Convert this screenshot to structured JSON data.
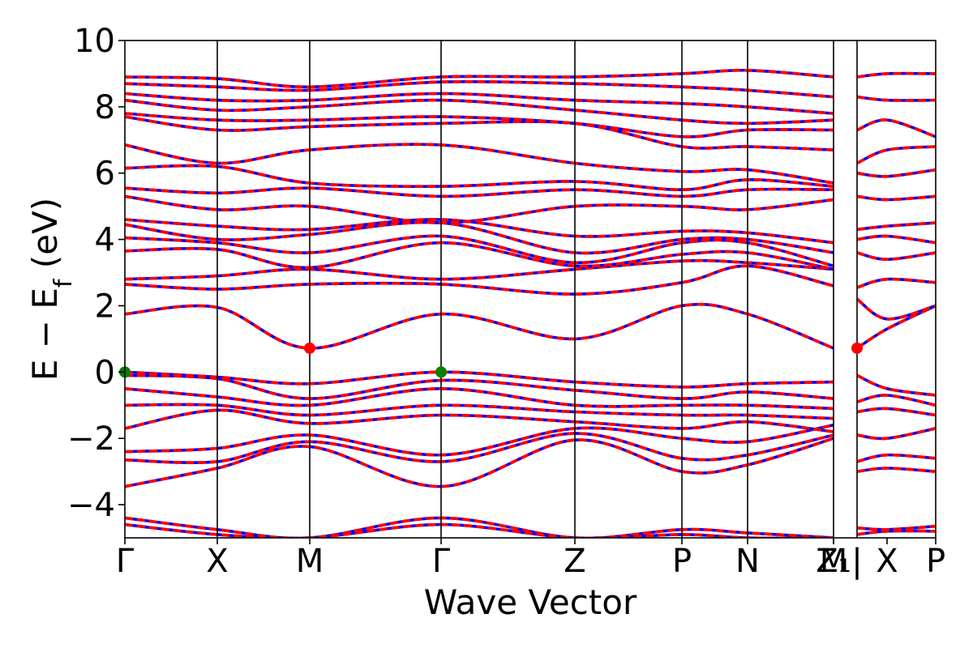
{
  "chart_data": {
    "type": "line",
    "title": "",
    "xlabel": "Wave Vector",
    "ylabel": {
      "main": "E − E",
      "subscript": "f",
      "unit": " (eV)"
    },
    "ylim": [
      -5,
      10
    ],
    "yticks": [
      -4,
      -2,
      0,
      2,
      4,
      6,
      8,
      10
    ],
    "grid": false,
    "kpath": [
      "Γ",
      "X",
      "M",
      "Γ",
      "Z",
      "P",
      "N",
      "Z1|M",
      "X",
      "P"
    ],
    "high_symmetry_labels": [
      {
        "label": "Γ",
        "x": 0.0
      },
      {
        "label": "X",
        "x": 0.114
      },
      {
        "label": "M",
        "x": 0.228
      },
      {
        "label": "Γ",
        "x": 0.39
      },
      {
        "label": "Z",
        "x": 0.555
      },
      {
        "label": "P",
        "x": 0.687
      },
      {
        "label": "N",
        "x": 0.768
      },
      {
        "label": "Z₁",
        "x": 0.874
      },
      {
        "label": "M",
        "x": 0.874
      },
      {
        "label": "|",
        "x": 0.903
      },
      {
        "label": "X",
        "x": 0.94
      },
      {
        "label": "P",
        "x": 1.0
      }
    ],
    "segment_boundaries": [
      0.114,
      0.228,
      0.39,
      0.555,
      0.687,
      0.768,
      0.874,
      0.903
    ],
    "colors": {
      "line_red": "#ff0000",
      "line_blue": "#0000ff",
      "cbm_marker": "#ff0000",
      "vbm_marker": "#008000"
    },
    "markers": [
      {
        "name": "VBM",
        "x": 0.0,
        "y": 0.0,
        "color": "#008000"
      },
      {
        "name": "VBM",
        "x": 0.39,
        "y": 0.0,
        "color": "#008000"
      },
      {
        "name": "CBM",
        "x": 0.228,
        "y": 0.72,
        "color": "#ff0000"
      },
      {
        "name": "CBM",
        "x": 0.903,
        "y": 0.72,
        "color": "#ff0000"
      }
    ],
    "bands": [
      {
        "x": [
          0,
          0.114,
          0.228,
          0.39,
          0.555,
          0.687,
          0.768,
          0.874
        ],
        "y": [
          -4.4,
          -4.75,
          -5.0,
          -4.4,
          -5.0,
          -4.75,
          -4.85,
          -5.0
        ]
      },
      {
        "x": [
          0,
          0.114,
          0.228,
          0.39,
          0.555,
          0.687,
          0.768,
          0.874
        ],
        "y": [
          -4.6,
          -4.9,
          -5.0,
          -4.6,
          -5.0,
          -4.9,
          -5.0,
          -5.0
        ]
      },
      {
        "x": [
          0,
          0.114,
          0.228,
          0.39,
          0.555,
          0.687,
          0.768,
          0.874
        ],
        "y": [
          -3.45,
          -2.9,
          -2.25,
          -3.45,
          -2.05,
          -3.0,
          -2.8,
          -2.0
        ]
      },
      {
        "x": [
          0,
          0.114,
          0.228,
          0.39,
          0.555,
          0.687,
          0.768,
          0.874
        ],
        "y": [
          -2.65,
          -2.7,
          -2.1,
          -2.7,
          -1.85,
          -2.6,
          -2.5,
          -1.9
        ]
      },
      {
        "x": [
          0,
          0.114,
          0.228,
          0.39,
          0.555,
          0.687,
          0.768,
          0.874
        ],
        "y": [
          -2.4,
          -2.3,
          -1.9,
          -2.5,
          -1.7,
          -2.0,
          -2.1,
          -1.6
        ]
      },
      {
        "x": [
          0,
          0.114,
          0.228,
          0.39,
          0.555,
          0.687,
          0.768,
          0.874
        ],
        "y": [
          -1.7,
          -1.15,
          -1.55,
          -1.3,
          -1.5,
          -1.7,
          -1.5,
          -1.8
        ]
      },
      {
        "x": [
          0,
          0.114,
          0.228,
          0.39,
          0.555,
          0.687,
          0.768,
          0.874
        ],
        "y": [
          -1.0,
          -1.0,
          -1.3,
          -1.0,
          -1.2,
          -1.3,
          -1.3,
          -1.4
        ]
      },
      {
        "x": [
          0,
          0.114,
          0.228,
          0.39,
          0.555,
          0.687,
          0.768,
          0.874
        ],
        "y": [
          -0.5,
          -0.75,
          -1.0,
          -0.5,
          -1.0,
          -1.0,
          -1.0,
          -1.1
        ]
      },
      {
        "x": [
          0,
          0.114,
          0.228,
          0.39,
          0.555,
          0.687,
          0.768,
          0.874
        ],
        "y": [
          -0.1,
          -0.2,
          -0.8,
          -0.25,
          -0.55,
          -0.8,
          -0.6,
          -0.8
        ]
      },
      {
        "x": [
          0,
          0.114,
          0.228,
          0.39,
          0.555,
          0.687,
          0.768,
          0.874
        ],
        "y": [
          0.0,
          -0.15,
          -0.35,
          0.0,
          -0.3,
          -0.45,
          -0.35,
          -0.3
        ]
      },
      {
        "x": [
          0,
          0.114,
          0.228,
          0.39,
          0.555,
          0.687,
          0.768,
          0.874
        ],
        "y": [
          1.75,
          1.95,
          0.72,
          1.75,
          1.0,
          2.0,
          1.75,
          0.72
        ]
      },
      {
        "x": [
          0,
          0.114,
          0.228,
          0.39,
          0.555,
          0.687,
          0.768,
          0.874
        ],
        "y": [
          2.65,
          2.5,
          2.65,
          2.65,
          2.35,
          2.7,
          3.2,
          2.6
        ]
      },
      {
        "x": [
          0,
          0.114,
          0.228,
          0.39,
          0.555,
          0.687,
          0.768,
          0.874
        ],
        "y": [
          2.8,
          2.9,
          3.1,
          2.8,
          3.1,
          3.35,
          3.3,
          3.1
        ]
      },
      {
        "x": [
          0,
          0.114,
          0.228,
          0.39,
          0.555,
          0.687,
          0.768,
          0.874
        ],
        "y": [
          3.65,
          3.7,
          3.15,
          3.9,
          3.2,
          3.55,
          3.6,
          3.1
        ]
      },
      {
        "x": [
          0,
          0.114,
          0.228,
          0.39,
          0.555,
          0.687,
          0.768,
          0.874
        ],
        "y": [
          4.05,
          3.9,
          3.6,
          4.1,
          3.3,
          3.9,
          3.9,
          3.2
        ]
      },
      {
        "x": [
          0,
          0.114,
          0.228,
          0.39,
          0.555,
          0.687,
          0.768,
          0.874
        ],
        "y": [
          4.45,
          4.0,
          4.15,
          4.5,
          3.6,
          4.0,
          4.0,
          3.6
        ]
      },
      {
        "x": [
          0,
          0.114,
          0.228,
          0.39,
          0.555,
          0.687,
          0.768,
          0.874
        ],
        "y": [
          4.6,
          4.4,
          4.3,
          4.6,
          4.1,
          4.25,
          4.2,
          3.9
        ]
      },
      {
        "x": [
          0,
          0.114,
          0.228,
          0.39,
          0.555,
          0.687,
          0.768,
          0.874
        ],
        "y": [
          5.3,
          4.9,
          5.0,
          4.5,
          5.0,
          5.0,
          4.9,
          5.2
        ]
      },
      {
        "x": [
          0,
          0.114,
          0.228,
          0.39,
          0.555,
          0.687,
          0.768,
          0.874
        ],
        "y": [
          5.55,
          5.4,
          5.55,
          5.3,
          5.5,
          5.3,
          5.5,
          5.5
        ]
      },
      {
        "x": [
          0,
          0.114,
          0.228,
          0.39,
          0.555,
          0.687,
          0.768,
          0.874
        ],
        "y": [
          6.15,
          6.2,
          5.7,
          5.6,
          5.75,
          5.5,
          5.8,
          5.6
        ]
      },
      {
        "x": [
          0,
          0.114,
          0.228,
          0.39,
          0.555,
          0.687,
          0.768,
          0.874
        ],
        "y": [
          6.85,
          6.3,
          6.7,
          6.85,
          6.3,
          6.05,
          6.1,
          5.7
        ]
      },
      {
        "x": [
          0,
          0.114,
          0.228,
          0.39,
          0.555,
          0.687,
          0.768,
          0.874
        ],
        "y": [
          7.7,
          7.3,
          7.4,
          7.5,
          7.5,
          6.8,
          6.8,
          6.7
        ]
      },
      {
        "x": [
          0,
          0.114,
          0.228,
          0.39,
          0.555,
          0.687,
          0.768,
          0.874
        ],
        "y": [
          7.8,
          7.6,
          7.6,
          7.7,
          7.5,
          7.1,
          7.3,
          7.3
        ]
      },
      {
        "x": [
          0,
          0.114,
          0.228,
          0.39,
          0.555,
          0.687,
          0.768,
          0.874
        ],
        "y": [
          8.2,
          7.9,
          8.0,
          8.2,
          7.9,
          7.6,
          7.5,
          7.6
        ]
      },
      {
        "x": [
          0,
          0.114,
          0.228,
          0.39,
          0.555,
          0.687,
          0.768,
          0.874
        ],
        "y": [
          8.4,
          8.2,
          8.2,
          8.4,
          8.2,
          8.1,
          8.0,
          7.8
        ]
      },
      {
        "x": [
          0,
          0.114,
          0.228,
          0.39,
          0.555,
          0.687,
          0.768,
          0.874
        ],
        "y": [
          8.7,
          8.6,
          8.5,
          8.75,
          8.7,
          8.6,
          8.5,
          8.3
        ]
      },
      {
        "x": [
          0,
          0.114,
          0.228,
          0.39,
          0.555,
          0.687,
          0.768,
          0.874
        ],
        "y": [
          8.9,
          8.85,
          8.6,
          8.9,
          8.9,
          9.0,
          9.1,
          8.9
        ]
      },
      {
        "x": [
          0.903,
          0.94,
          1.0
        ],
        "y": [
          -4.9,
          -4.8,
          -4.8
        ]
      },
      {
        "x": [
          0.903,
          0.94,
          1.0
        ],
        "y": [
          -4.7,
          -4.75,
          -4.65
        ]
      },
      {
        "x": [
          0.903,
          0.94,
          1.0
        ],
        "y": [
          -3.0,
          -2.9,
          -3.0
        ]
      },
      {
        "x": [
          0.903,
          0.94,
          1.0
        ],
        "y": [
          -2.7,
          -2.5,
          -2.6
        ]
      },
      {
        "x": [
          0.903,
          0.94,
          1.0
        ],
        "y": [
          -1.9,
          -2.0,
          -1.7
        ]
      },
      {
        "x": [
          0.903,
          0.94,
          1.0
        ],
        "y": [
          -1.2,
          -1.1,
          -1.3
        ]
      },
      {
        "x": [
          0.903,
          0.94,
          1.0
        ],
        "y": [
          -0.9,
          -0.7,
          -1.0
        ]
      },
      {
        "x": [
          0.903,
          0.94,
          1.0
        ],
        "y": [
          -0.1,
          -0.5,
          -0.7
        ]
      },
      {
        "x": [
          0.903,
          0.94,
          1.0
        ],
        "y": [
          0.72,
          1.3,
          2.0
        ]
      },
      {
        "x": [
          0.903,
          0.94,
          1.0
        ],
        "y": [
          2.2,
          1.6,
          2.0
        ]
      },
      {
        "x": [
          0.903,
          0.94,
          1.0
        ],
        "y": [
          2.55,
          2.8,
          2.7
        ]
      },
      {
        "x": [
          0.903,
          0.94,
          1.0
        ],
        "y": [
          3.6,
          3.4,
          3.6
        ]
      },
      {
        "x": [
          0.903,
          0.94,
          1.0
        ],
        "y": [
          4.0,
          4.1,
          3.9
        ]
      },
      {
        "x": [
          0.903,
          0.94,
          1.0
        ],
        "y": [
          4.3,
          4.4,
          4.5
        ]
      },
      {
        "x": [
          0.903,
          0.94,
          1.0
        ],
        "y": [
          5.3,
          5.2,
          5.3
        ]
      },
      {
        "x": [
          0.903,
          0.94,
          1.0
        ],
        "y": [
          6.0,
          5.9,
          6.1
        ]
      },
      {
        "x": [
          0.903,
          0.94,
          1.0
        ],
        "y": [
          6.3,
          6.7,
          6.8
        ]
      },
      {
        "x": [
          0.903,
          0.94,
          1.0
        ],
        "y": [
          7.3,
          7.6,
          7.1
        ]
      },
      {
        "x": [
          0.903,
          0.94,
          1.0
        ],
        "y": [
          8.3,
          8.2,
          8.2
        ]
      },
      {
        "x": [
          0.903,
          0.94,
          1.0
        ],
        "y": [
          8.9,
          9.0,
          9.0
        ]
      }
    ]
  }
}
